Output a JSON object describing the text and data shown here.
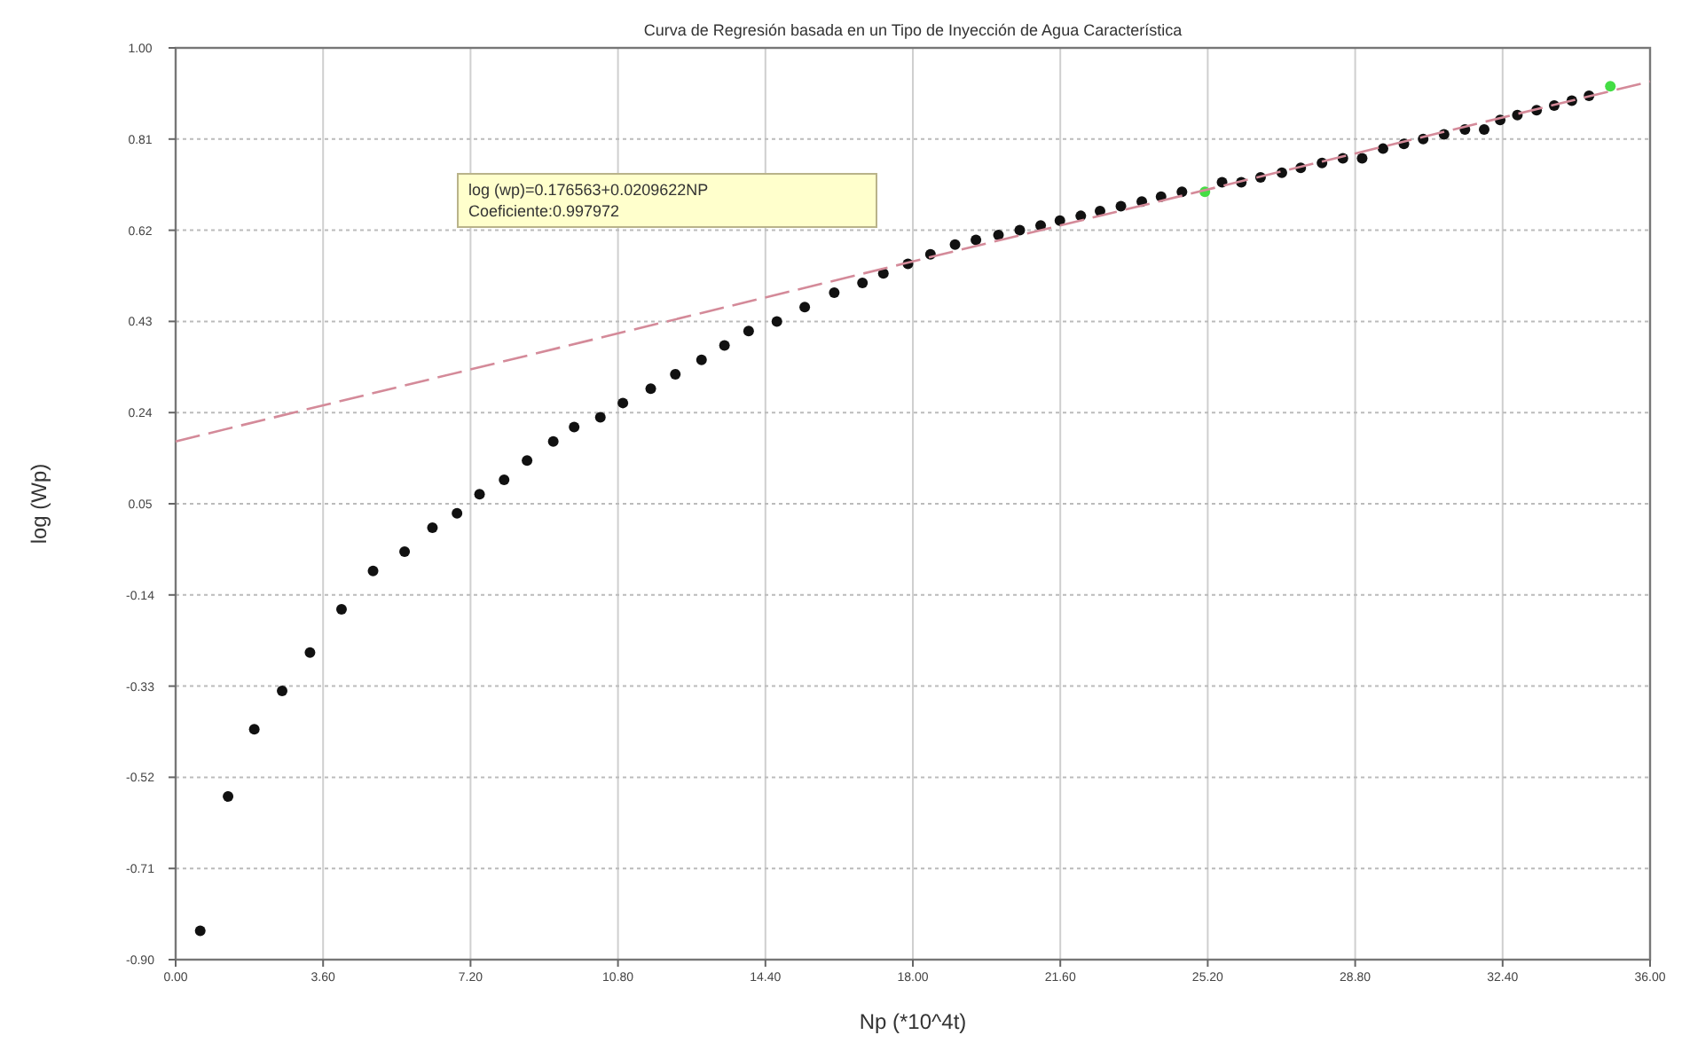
{
  "chart_data": {
    "type": "scatter",
    "title": "Curva de Regresión basada en un Tipo de Inyección de Agua Característica",
    "xlabel": "Np (*10^4t)",
    "ylabel": "log (Wp)",
    "annotations": [
      "log (wp)=0.176563+0.0209622NP",
      "Coeficiente:0.997972"
    ],
    "xlim": [
      0,
      36
    ],
    "ylim": [
      -0.9,
      1.0
    ],
    "xticks": [
      {
        "value": 0,
        "label": "0.00"
      },
      {
        "value": 3.6,
        "label": "3.60"
      },
      {
        "value": 7.2,
        "label": "7.20"
      },
      {
        "value": 10.8,
        "label": "10.80"
      },
      {
        "value": 14.4,
        "label": "14.40"
      },
      {
        "value": 18,
        "label": "18.00"
      },
      {
        "value": 21.6,
        "label": "21.60"
      },
      {
        "value": 25.2,
        "label": "25.20"
      },
      {
        "value": 28.8,
        "label": "28.80"
      },
      {
        "value": 32.4,
        "label": "32.40"
      },
      {
        "value": 36,
        "label": "36.00"
      }
    ],
    "yticks": [
      {
        "value": -0.9,
        "label": "-0.90"
      },
      -0.71,
      -0.52,
      -0.33,
      -0.14,
      0.05,
      0.24,
      0.43,
      0.62,
      0.81,
      {
        "value": 1.0,
        "label": "1.00"
      }
    ],
    "grid": true,
    "marker": "circle",
    "series": [
      {
        "type": "scatter",
        "color": "#111111",
        "x": [
          0.6,
          1.28,
          1.92,
          2.6,
          3.28,
          4.05,
          4.82,
          5.59,
          6.27,
          6.87,
          7.42,
          8.02,
          8.58,
          9.22,
          9.73,
          10.37,
          10.92,
          11.6,
          12.2,
          12.84,
          13.4,
          13.99,
          14.68,
          15.36,
          16.08,
          16.77,
          17.28,
          17.88,
          18.43,
          19.03,
          19.54,
          20.09,
          20.61,
          21.12,
          21.59,
          22.1,
          22.57,
          23.08,
          23.59,
          24.06,
          24.57,
          25.55,
          26.02,
          26.49,
          27.01,
          27.47,
          27.99,
          28.5,
          28.97,
          29.48,
          29.99,
          30.46,
          30.97,
          31.48,
          31.95,
          32.34,
          32.76,
          33.23,
          33.66,
          34.09,
          34.51
        ],
        "values": [
          -0.84,
          -0.56,
          -0.42,
          -0.34,
          -0.26,
          -0.17,
          -0.09,
          -0.05,
          0.0,
          0.03,
          0.07,
          0.1,
          0.14,
          0.18,
          0.21,
          0.23,
          0.26,
          0.29,
          0.32,
          0.35,
          0.38,
          0.41,
          0.43,
          0.46,
          0.49,
          0.51,
          0.53,
          0.55,
          0.57,
          0.59,
          0.6,
          0.61,
          0.62,
          0.63,
          0.64,
          0.65,
          0.66,
          0.67,
          0.68,
          0.69,
          0.7,
          0.72,
          0.72,
          0.73,
          0.74,
          0.75,
          0.76,
          0.77,
          0.77,
          0.79,
          0.8,
          0.81,
          0.82,
          0.83,
          0.83,
          0.85,
          0.86,
          0.87,
          0.88,
          0.89,
          0.9
        ]
      },
      {
        "type": "scatter",
        "color": "#44dd44",
        "x": [
          25.13,
          35.03
        ],
        "values": [
          0.7,
          0.92
        ]
      },
      {
        "type": "line",
        "color": "#d48a99",
        "line_style": "dashed",
        "marker": "none",
        "x": [
          0,
          36
        ],
        "values": [
          0.18,
          0.93
        ]
      }
    ]
  }
}
